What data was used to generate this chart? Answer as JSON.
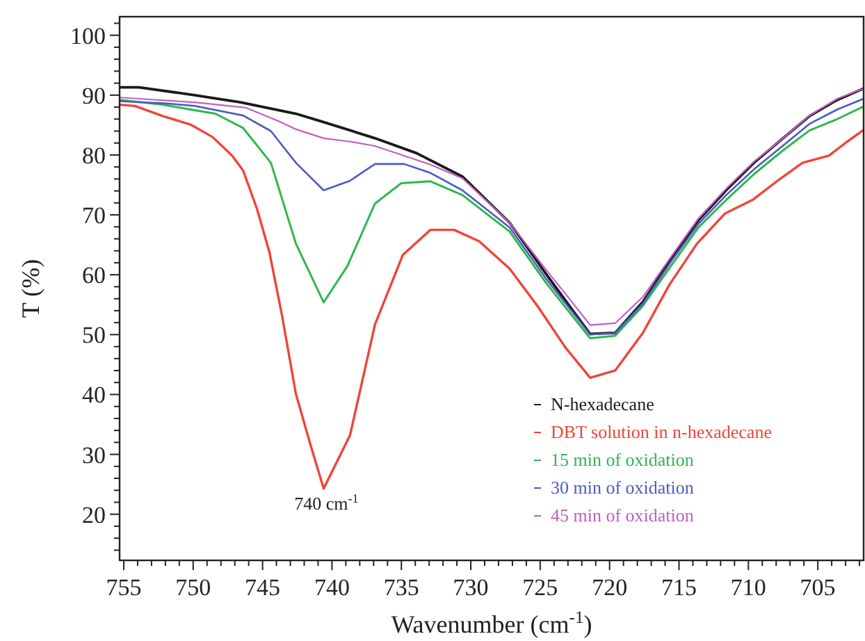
{
  "chart_data": {
    "type": "line",
    "xlabel": "Wavenumber (cm$^{-1}$)",
    "ylabel": "T (%)",
    "xlim": [
      755.3,
      701.7
    ],
    "ylim": [
      12.3,
      103.1
    ],
    "xticks": [
      755,
      {
        "value": 754,
        "label": null
      },
      {
        "value": 753,
        "label": null
      },
      {
        "value": 752,
        "label": null
      },
      {
        "value": 751,
        "label": null
      },
      750,
      {
        "value": 749,
        "label": null
      },
      {
        "value": 748,
        "label": null
      },
      {
        "value": 747,
        "label": null
      },
      {
        "value": 746,
        "label": null
      },
      745,
      {
        "value": 744,
        "label": null
      },
      {
        "value": 743,
        "label": null
      },
      {
        "value": 742,
        "label": null
      },
      {
        "value": 741,
        "label": null
      },
      740,
      {
        "value": 739,
        "label": null
      },
      {
        "value": 738,
        "label": null
      },
      {
        "value": 737,
        "label": null
      },
      {
        "value": 736,
        "label": null
      },
      735,
      {
        "value": 734,
        "label": null
      },
      {
        "value": 733,
        "label": null
      },
      {
        "value": 732,
        "label": null
      },
      {
        "value": 731,
        "label": null
      },
      730,
      {
        "value": 729,
        "label": null
      },
      {
        "value": 728,
        "label": null
      },
      {
        "value": 727,
        "label": null
      },
      {
        "value": 726,
        "label": null
      },
      725,
      {
        "value": 724,
        "label": null
      },
      {
        "value": 723,
        "label": null
      },
      {
        "value": 722,
        "label": null
      },
      {
        "value": 721,
        "label": null
      },
      720,
      {
        "value": 719,
        "label": null
      },
      {
        "value": 718,
        "label": null
      },
      {
        "value": 717,
        "label": null
      },
      {
        "value": 716,
        "label": null
      },
      715,
      {
        "value": 714,
        "label": null
      },
      {
        "value": 713,
        "label": null
      },
      {
        "value": 712,
        "label": null
      },
      {
        "value": 711,
        "label": null
      },
      710,
      {
        "value": 709,
        "label": null
      },
      {
        "value": 708,
        "label": null
      },
      {
        "value": 707,
        "label": null
      },
      {
        "value": 706,
        "label": null
      },
      705,
      {
        "value": 704,
        "label": null
      },
      {
        "value": 703,
        "label": null
      },
      {
        "value": 702,
        "label": null
      }
    ],
    "yticks": [
      {
        "value": 14,
        "label": null
      },
      {
        "value": 16,
        "label": null
      },
      {
        "value": 18,
        "label": null
      },
      20,
      {
        "value": 22,
        "label": null
      },
      {
        "value": 24,
        "label": null
      },
      {
        "value": 26,
        "label": null
      },
      {
        "value": 28,
        "label": null
      },
      30,
      {
        "value": 32,
        "label": null
      },
      {
        "value": 34,
        "label": null
      },
      {
        "value": 36,
        "label": null
      },
      {
        "value": 38,
        "label": null
      },
      40,
      {
        "value": 42,
        "label": null
      },
      {
        "value": 44,
        "label": null
      },
      {
        "value": 46,
        "label": null
      },
      {
        "value": 48,
        "label": null
      },
      50,
      {
        "value": 52,
        "label": null
      },
      {
        "value": 54,
        "label": null
      },
      {
        "value": 56,
        "label": null
      },
      {
        "value": 58,
        "label": null
      },
      60,
      {
        "value": 62,
        "label": null
      },
      {
        "value": 64,
        "label": null
      },
      {
        "value": 66,
        "label": null
      },
      {
        "value": 68,
        "label": null
      },
      70,
      {
        "value": 72,
        "label": null
      },
      {
        "value": 74,
        "label": null
      },
      {
        "value": 76,
        "label": null
      },
      {
        "value": 78,
        "label": null
      },
      80,
      {
        "value": 82,
        "label": null
      },
      {
        "value": 84,
        "label": null
      },
      {
        "value": 86,
        "label": null
      },
      {
        "value": 88,
        "label": null
      },
      90,
      {
        "value": 92,
        "label": null
      },
      {
        "value": 94,
        "label": null
      },
      {
        "value": 96,
        "label": null
      },
      {
        "value": 98,
        "label": null
      },
      100,
      {
        "value": 102,
        "label": null
      }
    ],
    "grid": false,
    "legend": "bottom right",
    "marker": "none",
    "line_style": "solid",
    "annotations": [
      {
        "text": "740 cm$^{-1}$",
        "x": 740.6,
        "y": 24.3
      }
    ],
    "series": [
      {
        "name": "N-hexadecane",
        "color": "#1a1a1a",
        "x": [
          755.3,
          753.9,
          749.9,
          746.6,
          742.6,
          740.6,
          736.9,
          733.9,
          730.6,
          727.2,
          724.6,
          722.9,
          721.4,
          719.6,
          717.6,
          715.6,
          713.6,
          711.6,
          709.6,
          707.6,
          705.6,
          703.6,
          701.7
        ],
        "values": [
          91.3,
          91.3,
          90.0,
          88.8,
          86.9,
          85.5,
          82.8,
          80.3,
          76.4,
          68.7,
          60.2,
          54.8,
          50.1,
          50.3,
          55.5,
          62.5,
          69.1,
          74.1,
          78.7,
          82.6,
          86.5,
          89.2,
          91.1
        ]
      },
      {
        "name": "DBT solution in n-hexadecane",
        "color": "#f0443a",
        "x": [
          755.3,
          754.2,
          752.2,
          750.2,
          748.6,
          747.2,
          746.4,
          745.4,
          744.5,
          743.6,
          742.6,
          741.6,
          740.6,
          738.7,
          736.9,
          734.9,
          732.9,
          731.2,
          729.4,
          727.2,
          725.2,
          723.2,
          721.4,
          719.6,
          717.6,
          715.7,
          713.7,
          711.7,
          709.7,
          707.9,
          706.1,
          704.2,
          702.9,
          701.7
        ],
        "values": [
          88.4,
          88.2,
          86.5,
          85.1,
          83.0,
          79.9,
          77.4,
          71.0,
          63.7,
          53.2,
          40.1,
          32.0,
          24.3,
          33.2,
          51.7,
          63.3,
          67.5,
          67.5,
          65.6,
          61.0,
          54.8,
          47.9,
          42.8,
          44.0,
          50.3,
          58.3,
          65.2,
          70.2,
          72.5,
          75.7,
          78.7,
          79.9,
          82.2,
          84.2
        ]
      },
      {
        "name": "15 min of oxidation",
        "color": "#2db84d",
        "x": [
          755.3,
          752.2,
          750.2,
          748.4,
          746.4,
          744.4,
          742.6,
          740.6,
          738.9,
          736.9,
          735.0,
          732.9,
          730.6,
          727.2,
          724.6,
          721.4,
          719.6,
          717.6,
          715.6,
          713.6,
          711.6,
          709.6,
          707.6,
          705.6,
          703.6,
          701.7
        ],
        "values": [
          89.2,
          88.4,
          87.6,
          86.9,
          84.5,
          78.7,
          65.2,
          55.4,
          61.4,
          71.9,
          75.3,
          75.6,
          73.3,
          67.2,
          58.7,
          49.4,
          49.8,
          54.8,
          61.4,
          67.9,
          72.5,
          76.8,
          80.6,
          84.1,
          86.0,
          88.1
        ]
      },
      {
        "name": "30 min of oxidation",
        "color": "#4a5bc4",
        "x": [
          755.3,
          751.9,
          749.9,
          746.4,
          744.4,
          742.6,
          740.6,
          738.7,
          736.9,
          734.8,
          732.9,
          730.6,
          727.2,
          724.6,
          721.4,
          719.6,
          717.6,
          715.6,
          713.6,
          711.6,
          709.6,
          707.6,
          705.6,
          703.6,
          701.7
        ],
        "values": [
          89.0,
          88.6,
          88.2,
          86.6,
          84.0,
          78.7,
          74.1,
          75.7,
          78.5,
          78.5,
          77.0,
          74.1,
          67.9,
          59.4,
          50.0,
          50.3,
          55.2,
          62.1,
          68.5,
          73.3,
          77.6,
          81.4,
          85.2,
          87.6,
          89.4
        ]
      },
      {
        "name": "45 min of oxidation",
        "color": "#c060c0",
        "x": [
          755.3,
          753.9,
          749.9,
          746.2,
          743.9,
          742.6,
          740.6,
          738.6,
          736.9,
          732.9,
          730.6,
          727.2,
          724.6,
          722.9,
          721.4,
          719.6,
          717.6,
          715.6,
          713.6,
          711.6,
          709.6,
          707.6,
          705.6,
          703.6,
          701.7
        ],
        "values": [
          89.6,
          89.4,
          88.8,
          87.9,
          85.7,
          84.3,
          82.8,
          82.2,
          81.5,
          78.4,
          76.1,
          68.7,
          60.9,
          56.0,
          51.6,
          51.9,
          56.3,
          62.9,
          69.4,
          74.4,
          78.9,
          82.6,
          86.6,
          89.4,
          91.1
        ]
      }
    ]
  }
}
